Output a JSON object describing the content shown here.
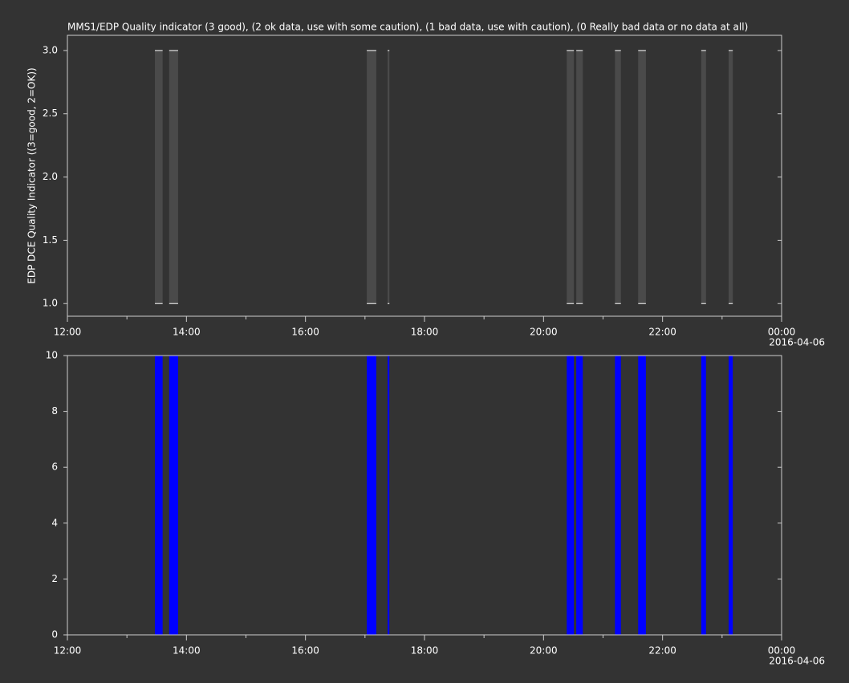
{
  "chart_data": [
    {
      "type": "bar",
      "title": "MMS1/EDP  Quality indicator (3 good), (2 ok data, use with some caution), (1 bad data, use with caution), (0 Really bad data or no data at all)",
      "y_label": "EDP DCE Quality Indicator ((3=good, 2=OK))",
      "color": "#4a4a4a",
      "cap_color": "#ffffff",
      "bar_base": 1,
      "x_start": [
        13.47,
        13.71,
        17.03,
        17.38,
        20.39,
        20.55,
        21.2,
        21.59,
        22.65,
        23.11
      ],
      "x_end": [
        13.6,
        13.86,
        17.19,
        17.41,
        20.51,
        20.66,
        21.3,
        21.72,
        22.73,
        23.18
      ],
      "values": [
        3,
        3,
        3,
        3,
        3,
        3,
        3,
        3,
        3,
        3
      ],
      "xlim": [
        12,
        24
      ],
      "xticks": [
        {
          "value": 12,
          "label": "12:00"
        },
        {
          "value": 14,
          "label": "14:00"
        },
        {
          "value": 16,
          "label": "16:00"
        },
        {
          "value": 18,
          "label": "18:00"
        },
        {
          "value": 20,
          "label": "20:00"
        },
        {
          "value": 22,
          "label": "22:00"
        },
        {
          "value": 24,
          "label": "00:00"
        }
      ],
      "minor_xticks": [
        13,
        15,
        17,
        19,
        21,
        23
      ],
      "x_date_label": "2016-04-06",
      "ylim": [
        0.9,
        3.12
      ],
      "yticks": [
        {
          "value": 1,
          "label": "1.0"
        },
        {
          "value": 1.5,
          "label": "1.5"
        },
        {
          "value": 2,
          "label": "2.0"
        },
        {
          "value": 2.5,
          "label": "2.5"
        },
        {
          "value": 3,
          "label": "3.0"
        }
      ]
    },
    {
      "type": "bar",
      "color": "#0000ff",
      "bar_base": 0,
      "x_start": [
        13.47,
        13.71,
        17.03,
        17.38,
        20.39,
        20.55,
        21.2,
        21.59,
        22.65,
        23.11
      ],
      "x_end": [
        13.6,
        13.86,
        17.19,
        17.41,
        20.51,
        20.66,
        21.3,
        21.72,
        22.73,
        23.18
      ],
      "values": [
        10,
        10,
        10,
        10,
        10,
        10,
        10,
        10,
        10,
        10
      ],
      "xlim": [
        12,
        24
      ],
      "xticks": [
        {
          "value": 12,
          "label": "12:00"
        },
        {
          "value": 14,
          "label": "14:00"
        },
        {
          "value": 16,
          "label": "16:00"
        },
        {
          "value": 18,
          "label": "18:00"
        },
        {
          "value": 20,
          "label": "20:00"
        },
        {
          "value": 22,
          "label": "22:00"
        },
        {
          "value": 24,
          "label": "00:00"
        }
      ],
      "minor_xticks": [
        13,
        15,
        17,
        19,
        21,
        23
      ],
      "x_date_label": "2016-04-06",
      "ylim": [
        0,
        10
      ],
      "yticks": [
        0,
        2,
        4,
        6,
        8,
        10
      ]
    }
  ]
}
